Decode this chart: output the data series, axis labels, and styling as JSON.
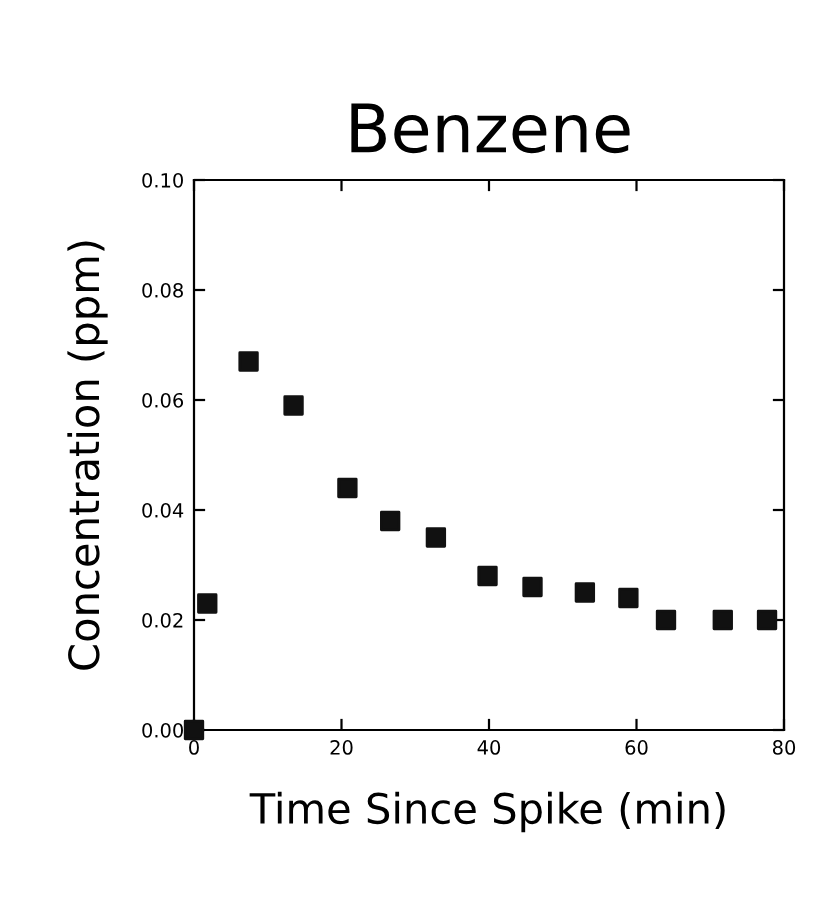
{
  "chart_data": {
    "type": "scatter",
    "title": "Benzene",
    "xlabel": "Time Since Spike (min)",
    "ylabel": "Concentration (ppm)",
    "x": [
      0,
      1.8,
      7.4,
      13.5,
      20.8,
      26.6,
      32.8,
      39.8,
      45.9,
      53.0,
      58.9,
      64.0,
      71.7,
      77.7
    ],
    "values": [
      0.0,
      0.023,
      0.067,
      0.059,
      0.044,
      0.038,
      0.035,
      0.028,
      0.026,
      0.025,
      0.024,
      0.02,
      0.02,
      0.02
    ],
    "color": "#111111",
    "marker": "square",
    "xlim": [
      0,
      80
    ],
    "xticks": [
      0,
      20,
      40,
      60,
      80
    ],
    "ylim": [
      0,
      0.1
    ],
    "yticks": [
      {
        "value": 0,
        "label": "0.00"
      },
      {
        "value": 0.02,
        "label": "0.02"
      },
      {
        "value": 0.04,
        "label": "0.04"
      },
      {
        "value": 0.06,
        "label": "0.06"
      },
      {
        "value": 0.08,
        "label": "0.08"
      },
      {
        "value": 0.1,
        "label": "0.10"
      }
    ],
    "grid": false
  }
}
